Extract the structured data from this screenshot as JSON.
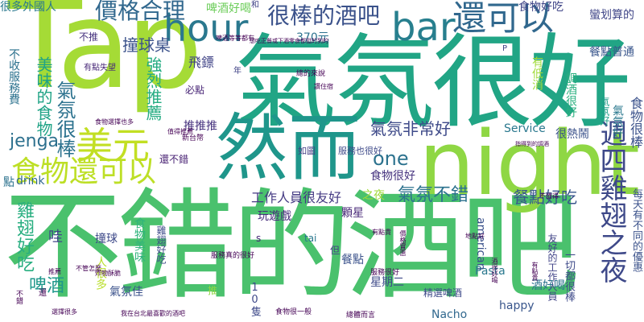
{
  "words": [
    {
      "id": "w1",
      "text": "Tap",
      "color": "#a5db36"
    },
    {
      "id": "w2",
      "text": "氣氛很好",
      "color": "#21a585"
    },
    {
      "id": "w3",
      "text": "不錯的酒吧",
      "color": "#4ac16d"
    },
    {
      "id": "w4",
      "text": "night",
      "color": "#8fd744"
    },
    {
      "id": "w5",
      "text": "然而",
      "color": "#1f968b"
    },
    {
      "id": "w6",
      "text": "hour",
      "color": "#2a788e"
    },
    {
      "id": "w7",
      "text": "bar",
      "color": "#277f8e"
    },
    {
      "id": "w8",
      "text": "還可以",
      "color": "#31688e"
    },
    {
      "id": "w9",
      "text": "很棒的酒吧",
      "color": "#3b528b"
    },
    {
      "id": "w10",
      "text": "價格合理",
      "color": "#31688e"
    },
    {
      "id": "w11",
      "text": "美元",
      "color": "#c2df23"
    },
    {
      "id": "w12",
      "text": "食物還可以",
      "color": "#bddf26"
    },
    {
      "id": "w13",
      "text": "氣氛很棒",
      "color": "#2c728e"
    },
    {
      "id": "w14",
      "text": "jenga",
      "color": "#2d708e"
    },
    {
      "id": "w15",
      "text": "one",
      "color": "#2c728e"
    },
    {
      "id": "w16",
      "text": "氣氛非常好",
      "color": "#3e4a89"
    },
    {
      "id": "w17",
      "text": "氣氛不錯",
      "color": "#2c728e"
    },
    {
      "id": "w18",
      "text": "餐點好吃",
      "color": "#39568c"
    },
    {
      "id": "w19",
      "text": "週四雞翅之夜",
      "color": "#3e4989"
    },
    {
      "id": "w20",
      "text": "撞球桌",
      "color": "#3b528b"
    },
    {
      "id": "w21",
      "text": "強烈推薦",
      "color": "#25ac82"
    },
    {
      "id": "w22",
      "text": "工作人員很友好",
      "color": "#443a83"
    },
    {
      "id": "w23",
      "text": "雞翅好吃",
      "color": "#28ae80"
    },
    {
      "id": "w24",
      "text": "美味的食物",
      "color": "#20a386"
    },
    {
      "id": "w25",
      "text": "啤酒",
      "color": "#1f988b"
    },
    {
      "id": "w26",
      "text": "很多外國人",
      "color": "#2a788e"
    },
    {
      "id": "w27",
      "text": "啤酒好喝",
      "color": "#6ccd5a"
    },
    {
      "id": "w28",
      "text": "食物好吃",
      "color": "#404688"
    },
    {
      "id": "w29",
      "text": "蠻划算的",
      "color": "#404688"
    },
    {
      "id": "w30",
      "text": "餐點普通",
      "color": "#39568c"
    },
    {
      "id": "w31",
      "text": "食物很棒",
      "color": "#3b528b"
    },
    {
      "id": "w32",
      "text": "飛鏢",
      "color": "#414487"
    },
    {
      "id": "w33",
      "text": "必點",
      "color": "#482576"
    },
    {
      "id": "w34",
      "text": "推推推",
      "color": "#46327e"
    },
    {
      "id": "w35",
      "text": "食物很好",
      "color": "#46337f"
    },
    {
      "id": "w36",
      "text": "Service",
      "color": "#2a788e"
    },
    {
      "id": "w37",
      "text": "很熱鬧",
      "color": "#3b528b"
    },
    {
      "id": "w38",
      "text": "氣氛好",
      "color": "#2a788e"
    },
    {
      "id": "w39",
      "text": "每天有不同的優惠",
      "color": "#3b528b"
    },
    {
      "id": "w40",
      "text": "一切都很棒",
      "color": "#3e4a89"
    },
    {
      "id": "w41",
      "text": "友好的工作人員",
      "color": "#414487"
    },
    {
      "id": "w42",
      "text": "酒好喝",
      "color": "#2c728e"
    },
    {
      "id": "w43",
      "text": "Pasta",
      "color": "#2a788e"
    },
    {
      "id": "w44",
      "text": "american",
      "color": "#3b528b"
    },
    {
      "id": "w45",
      "text": "顆星",
      "color": "#482878"
    },
    {
      "id": "w46",
      "text": "玩遊戲",
      "color": "#472d7b"
    },
    {
      "id": "w47",
      "text": "之夜",
      "color": "#a0da39"
    },
    {
      "id": "w48",
      "text": "星期二",
      "color": "#3e4a89"
    },
    {
      "id": "w49",
      "text": "happy",
      "color": "#39568c"
    },
    {
      "id": "w50",
      "text": "Nacho",
      "color": "#31688e"
    },
    {
      "id": "w51",
      "text": "精選啤酒",
      "color": "#3e4a89"
    },
    {
      "id": "w52",
      "text": "餐點",
      "color": "#3b528b"
    },
    {
      "id": "w53",
      "text": "撞球",
      "color": "#3e4a89"
    },
    {
      "id": "w54",
      "text": "食物美味",
      "color": "#2fb47c"
    },
    {
      "id": "w55",
      "text": "人很多",
      "color": "#b8de29"
    },
    {
      "id": "w56",
      "text": "氣氛佳",
      "color": "#3b528b"
    },
    {
      "id": "w57",
      "text": "10隻",
      "color": "#3e4989"
    },
    {
      "id": "w58",
      "text": "哇",
      "color": "#404688"
    },
    {
      "id": "w59",
      "text": "雞翅好吃",
      "color": "#3e4a89"
    },
    {
      "id": "w60",
      "text": "drink",
      "color": "#31688e"
    },
    {
      "id": "w61",
      "text": "點",
      "color": "#2c728e"
    },
    {
      "id": "w62",
      "text": "還不錯",
      "color": "#482173"
    },
    {
      "id": "w63",
      "text": "不收服務費",
      "color": "#2c728e"
    },
    {
      "id": "w64",
      "text": "不推",
      "color": "#46327e"
    },
    {
      "id": "w65",
      "text": "有點失望",
      "color": "#482878"
    },
    {
      "id": "w66",
      "text": "370元",
      "color": "#2c728e"
    },
    {
      "id": "w67",
      "text": "有低消",
      "color": "#a0da39"
    },
    {
      "id": "w68",
      "text": "調酒很好",
      "color": "#2ab07f"
    },
    {
      "id": "w69",
      "text": "氣氛好",
      "color": "#1f9e89"
    },
    {
      "id": "w70",
      "text": "服務也很好",
      "color": "#3e4a89"
    },
    {
      "id": "w71",
      "text": "如圖",
      "color": "#433e85"
    },
    {
      "id": "w72",
      "text": "tai",
      "color": "#2a788e"
    },
    {
      "id": "w73",
      "text": "s",
      "color": "#482878"
    },
    {
      "id": "w74",
      "text": "但",
      "color": "#433e85"
    },
    {
      "id": "w75",
      "text": "推",
      "color": "#8fd744"
    },
    {
      "id": "w76",
      "text": "和",
      "color": "#414487"
    },
    {
      "id": "w77",
      "text": "年",
      "color": "#414487"
    },
    {
      "id": "w78",
      "text": "P",
      "color": "#414487"
    },
    {
      "id": "w79",
      "text": "不值得",
      "color": "#440154"
    },
    {
      "id": "w80",
      "text": "有點貴",
      "color": "#440154"
    },
    {
      "id": "w81",
      "text": "想吃正餐或下酒零食都挺的到的",
      "color": "#440154"
    },
    {
      "id": "w82",
      "text": "總的來說",
      "color": "#440154"
    },
    {
      "id": "w83",
      "text": "食物選擇也多",
      "color": "#440154"
    },
    {
      "id": "w84",
      "text": "值得推薦",
      "color": "#440154"
    },
    {
      "id": "w85",
      "text": "新台幣",
      "color": "#440154"
    },
    {
      "id": "w86",
      "text": "服務真的很好",
      "color": "#440154"
    },
    {
      "id": "w87",
      "text": "服務很好",
      "color": "#440154"
    },
    {
      "id": "w88",
      "text": "食物很一般",
      "color": "#440154"
    },
    {
      "id": "w89",
      "text": "我在台北最喜歡的酒吧",
      "color": "#440154"
    },
    {
      "id": "w90",
      "text": "總體而言",
      "color": "#440154"
    },
    {
      "id": "w91",
      "text": "啤酒等等都有",
      "color": "#440154"
    },
    {
      "id": "w92",
      "text": "價格實惠",
      "color": "#440154"
    },
    {
      "id": "w93",
      "text": "不管怎麼",
      "color": "#440154"
    },
    {
      "id": "w94",
      "text": "炸物酥脆",
      "color": "#440154"
    },
    {
      "id": "w95",
      "text": "選擇很多",
      "color": "#440154"
    },
    {
      "id": "w96",
      "text": "不錯",
      "color": "#440154"
    },
    {
      "id": "w97",
      "text": "酒很好喝",
      "color": "#440154"
    },
    {
      "id": "w98",
      "text": "有點貴",
      "color": "#440154"
    },
    {
      "id": "w99",
      "text": "地點好",
      "color": "#440154"
    },
    {
      "id": "w100",
      "text": "推薦",
      "color": "#440154"
    },
    {
      "id": "w101",
      "text": "指得到的調酒",
      "color": "#440154"
    },
    {
      "id": "w102",
      "text": "讚住宿",
      "color": "#440154"
    },
    {
      "id": "w103",
      "text": "還",
      "color": "#440154"
    }
  ]
}
